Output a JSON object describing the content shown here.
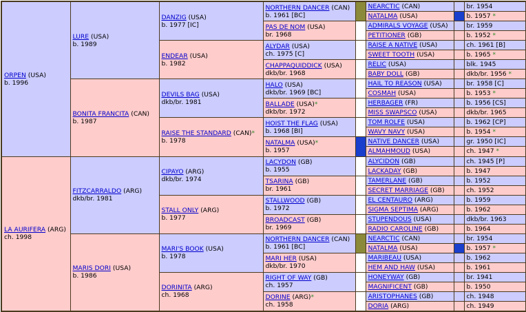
{
  "pedigree": {
    "gen1": [
      {
        "name": "ORPEN",
        "country": " (USA)",
        "info": "b. 1996",
        "sex": "m"
      },
      {
        "name": "LA AURIFERA",
        "country": " (ARG)",
        "info": "ch. 1998",
        "sex": "f"
      }
    ],
    "gen2": [
      {
        "name": "LURE",
        "country": " (USA)",
        "info": "b. 1989",
        "sex": "m"
      },
      {
        "name": "BONITA FRANCITA",
        "country": " (CAN)",
        "info": "b. 1987",
        "sex": "f"
      },
      {
        "name": "FITZCARRALDO",
        "country": " (ARG)",
        "info": "dkb/br. 1981",
        "sex": "m"
      },
      {
        "name": "MARIS DORI",
        "country": " (USA)",
        "info": "b. 1986",
        "sex": "f"
      }
    ],
    "gen3": [
      {
        "name": "DANZIG",
        "country": " (USA)",
        "info": "b. 1977 [IC]",
        "sex": "m",
        "star": ""
      },
      {
        "name": "ENDEAR",
        "country": " (USA)",
        "info": "b. 1982",
        "sex": "f",
        "star": ""
      },
      {
        "name": "DEVILS BAG",
        "country": " (USA)",
        "info": "dkb/br. 1981",
        "sex": "m",
        "star": ""
      },
      {
        "name": "RAISE THE STANDARD",
        "country": " (CAN)",
        "info": "b. 1978",
        "sex": "f",
        "star": "*"
      },
      {
        "name": "CIPAYO",
        "country": " (ARG)",
        "info": "dkb/br. 1974",
        "sex": "m",
        "star": ""
      },
      {
        "name": "STALL ONLY",
        "country": " (ARG)",
        "info": "b. 1977",
        "sex": "f",
        "star": ""
      },
      {
        "name": "MARI'S BOOK",
        "country": " (USA)",
        "info": "b. 1978",
        "sex": "m",
        "star": ""
      },
      {
        "name": "DORINITA",
        "country": " (ARG)",
        "info": "ch. 1968",
        "sex": "f",
        "star": ""
      }
    ],
    "gen4": [
      {
        "name": "NORTHERN DANCER",
        "country": " (CAN)",
        "info": "b. 1961 [BC]",
        "sex": "m",
        "star": ""
      },
      {
        "name": "PAS DE NOM",
        "country": " (USA)",
        "info": "br. 1968",
        "sex": "f",
        "star": ""
      },
      {
        "name": "ALYDAR",
        "country": " (USA)",
        "info": "ch. 1975 [C]",
        "sex": "m",
        "star": ""
      },
      {
        "name": "CHAPPAQUIDDICK",
        "country": " (USA)",
        "info": "dkb/br. 1968",
        "sex": "f",
        "star": ""
      },
      {
        "name": "HALO",
        "country": " (USA)",
        "info": "dkb/br. 1969 [BC]",
        "sex": "m",
        "star": ""
      },
      {
        "name": "BALLADE",
        "country": " (USA)",
        "info": "dkb/br. 1972",
        "sex": "f",
        "star": "*"
      },
      {
        "name": "HOIST THE FLAG",
        "country": " (USA)",
        "info": "b. 1968 [BI]",
        "sex": "m",
        "star": ""
      },
      {
        "name": "NATALMA",
        "country": " (USA)",
        "info": "b. 1957",
        "sex": "f",
        "star": "*"
      },
      {
        "name": "LACYDON",
        "country": " (GB)",
        "info": "b. 1955",
        "sex": "m",
        "star": ""
      },
      {
        "name": "TSARINA",
        "country": " (GB)",
        "info": "br. 1961",
        "sex": "f",
        "star": ""
      },
      {
        "name": "STALLWOOD",
        "country": " (GB)",
        "info": "b. 1972",
        "sex": "m",
        "star": ""
      },
      {
        "name": "BROADCAST",
        "country": " (GB)",
        "info": "br. 1969",
        "sex": "f",
        "star": ""
      },
      {
        "name": "NORTHERN DANCER",
        "country": " (CAN)",
        "info": "b. 1961 [BC]",
        "sex": "m",
        "star": ""
      },
      {
        "name": "MARI HER",
        "country": " (USA)",
        "info": "dkb/br. 1970",
        "sex": "f",
        "star": ""
      },
      {
        "name": "RIGHT OF WAY",
        "country": " (GB)",
        "info": "ch. 1957",
        "sex": "m",
        "star": ""
      },
      {
        "name": "DORINE",
        "country": " (ARG)",
        "info": "ch. 1958",
        "sex": "f",
        "star": "*"
      }
    ],
    "gen5": [
      {
        "name": "NEARCTIC",
        "country": " (CAN)",
        "info": "br. 1954",
        "sex": "m",
        "star": ""
      },
      {
        "name": "NATALMA",
        "country": " (USA)",
        "info": "b. 1957",
        "sex": "f",
        "star": "*"
      },
      {
        "name": "ADMIRALS VOYAGE",
        "country": " (USA)",
        "info": "br. 1959",
        "sex": "m",
        "star": ""
      },
      {
        "name": "PETITIONER",
        "country": " (GB)",
        "info": "b. 1952",
        "sex": "f",
        "star": "*"
      },
      {
        "name": "RAISE A NATIVE",
        "country": " (USA)",
        "info": "ch. 1961 [B]",
        "sex": "m",
        "star": ""
      },
      {
        "name": "SWEET TOOTH",
        "country": " (USA)",
        "info": "b. 1965",
        "sex": "f",
        "star": "*"
      },
      {
        "name": "RELIC",
        "country": " (USA)",
        "info": "blk. 1945",
        "sex": "m",
        "star": ""
      },
      {
        "name": "BABY DOLL",
        "country": " (GB)",
        "info": "dkb/br. 1956",
        "sex": "f",
        "star": "*"
      },
      {
        "name": "HAIL TO REASON",
        "country": " (USA)",
        "info": "br. 1958 [C]",
        "sex": "m",
        "star": ""
      },
      {
        "name": "COSMAH",
        "country": " (USA)",
        "info": "b. 1953",
        "sex": "f",
        "star": "*"
      },
      {
        "name": "HERBAGER",
        "country": " (FR)",
        "info": "b. 1956 [CS]",
        "sex": "m",
        "star": ""
      },
      {
        "name": "MISS SWAPSCO",
        "country": " (USA)",
        "info": "dkb/br. 1965",
        "sex": "f",
        "star": ""
      },
      {
        "name": "TOM ROLFE",
        "country": " (USA)",
        "info": "b. 1962 [CP]",
        "sex": "m",
        "star": ""
      },
      {
        "name": "WAVY NAVY",
        "country": " (USA)",
        "info": "b. 1954",
        "sex": "f",
        "star": "*"
      },
      {
        "name": "NATIVE DANCER",
        "country": " (USA)",
        "info": "gr. 1950 [IC]",
        "sex": "m",
        "star": ""
      },
      {
        "name": "ALMAHMOUD",
        "country": " (USA)",
        "info": "ch. 1947",
        "sex": "f",
        "star": "*"
      },
      {
        "name": "ALYCIDON",
        "country": " (GB)",
        "info": "ch. 1945 [P]",
        "sex": "m",
        "star": ""
      },
      {
        "name": "LACKADAY",
        "country": " (GB)",
        "info": "b. 1947",
        "sex": "f",
        "star": ""
      },
      {
        "name": "TAMERLANE",
        "country": " (GB)",
        "info": "b. 1952",
        "sex": "m",
        "star": ""
      },
      {
        "name": "SECRET MARRIAGE",
        "country": " (GB)",
        "info": "ch. 1952",
        "sex": "f",
        "star": ""
      },
      {
        "name": "EL CENTAURO",
        "country": " (ARG)",
        "info": "b. 1959",
        "sex": "m",
        "star": ""
      },
      {
        "name": "SIGMA SEPTIMA",
        "country": " (ARG)",
        "info": "b. 1962",
        "sex": "f",
        "star": ""
      },
      {
        "name": "STUPENDOUS",
        "country": " (USA)",
        "info": "dkb/br. 1963",
        "sex": "m",
        "star": ""
      },
      {
        "name": "RADIO CAROLINE",
        "country": " (GB)",
        "info": "b. 1964",
        "sex": "f",
        "star": ""
      },
      {
        "name": "NEARCTIC",
        "country": " (CAN)",
        "info": "br. 1954",
        "sex": "m",
        "star": ""
      },
      {
        "name": "NATALMA",
        "country": " (USA)",
        "info": "b. 1957",
        "sex": "f",
        "star": "*"
      },
      {
        "name": "MARIBEAU",
        "country": " (USA)",
        "info": "b. 1962",
        "sex": "m",
        "star": ""
      },
      {
        "name": "HEM AND HAW",
        "country": " (USA)",
        "info": "b. 1961",
        "sex": "f",
        "star": ""
      },
      {
        "name": "HONEYWAY",
        "country": " (GB)",
        "info": "br. 1941",
        "sex": "m",
        "star": ""
      },
      {
        "name": "MAGNIFICENT",
        "country": " (GB)",
        "info": "b. 1950",
        "sex": "f",
        "star": ""
      },
      {
        "name": "ARISTOPHANES",
        "country": " (GB)",
        "info": "ch. 1948",
        "sex": "m",
        "star": ""
      },
      {
        "name": "DORIA",
        "country": " (ARG)",
        "info": "ch. 1949",
        "sex": "f",
        "star": ""
      }
    ],
    "inbreeding_markers": [
      {
        "row": 0,
        "color": "#8b8a3a"
      },
      {
        "row": 1,
        "color": "#1a3fcc"
      },
      {
        "row": 14,
        "color": "#1a3fcc"
      },
      {
        "row": 24,
        "color": "#8b8a3a"
      },
      {
        "row": 25,
        "color": "#1a3fcc"
      }
    ]
  }
}
